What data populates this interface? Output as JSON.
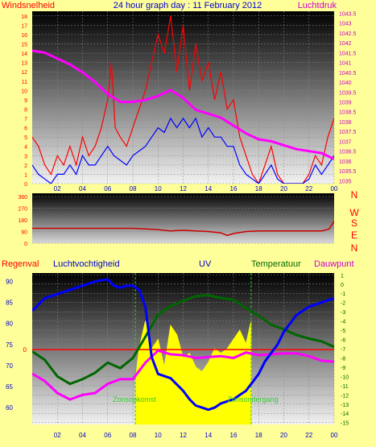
{
  "colors": {
    "background": "#ffff99",
    "wind": "#ff0000",
    "wind_avg": "#0000ff",
    "pressure": "#ff00ff",
    "direction": "#cc0000",
    "humidity": "#0000ff",
    "uv": "#ffff00",
    "temperature": "#006600",
    "dewpoint": "#ff00ff",
    "rain": "#ff0000",
    "text_red": "#ff0000",
    "text_blue": "#0000cc",
    "text_magenta": "#cc00cc",
    "text_green": "#006600",
    "marker_green": "#33cc33"
  },
  "chart_data": [
    {
      "type": "line",
      "title": "24 hour graph day : 11 February 2012",
      "left_label": "Windsnelheid",
      "right_label": "Luchtdruk",
      "x_ticks": [
        "02",
        "04",
        "06",
        "08",
        "10",
        "12",
        "14",
        "16",
        "18",
        "20",
        "22",
        "00"
      ],
      "y_ticks": [
        "0",
        "1",
        "2",
        "3",
        "4",
        "5",
        "6",
        "7",
        "8",
        "9",
        "10",
        "11",
        "12",
        "13",
        "14",
        "15",
        "16",
        "17",
        "18"
      ],
      "y2_ticks": [
        "1035",
        "1035.5",
        "1036",
        "1036.5",
        "1037",
        "1037.5",
        "1038",
        "1038.5",
        "1039",
        "1039.5",
        "1040",
        "1040.5",
        "1041",
        "1041.5",
        "1042",
        "1042.5",
        "1043",
        "1043.5"
      ],
      "xlim": [
        0,
        24
      ],
      "ylim": [
        0,
        18.5
      ],
      "y2lim": [
        1034.85,
        1043.6
      ],
      "series": [
        {
          "key": "wind_gust",
          "x": [
            0,
            0.5,
            1,
            1.5,
            2,
            2.5,
            3,
            3.5,
            4,
            4.5,
            5,
            5.5,
            6,
            6.3,
            6.6,
            7,
            7.5,
            8,
            8.5,
            9,
            9.5,
            10,
            10.5,
            11,
            11.5,
            12,
            12.5,
            13,
            13.5,
            14,
            14.5,
            15,
            15.5,
            16,
            16.5,
            17,
            17.5,
            18,
            18.5,
            19,
            19.5,
            20,
            20.5,
            21,
            21.5,
            22,
            22.5,
            23,
            23.5,
            24
          ],
          "values": [
            5,
            4,
            2,
            1,
            3,
            2,
            4,
            2,
            5,
            3,
            4,
            6,
            9,
            13,
            6,
            5,
            4,
            6,
            8,
            10,
            13,
            16,
            14,
            18,
            12,
            17,
            10,
            15,
            11,
            13,
            9,
            12,
            8,
            9,
            5,
            3,
            1,
            0,
            2,
            4,
            1,
            0,
            0,
            0,
            0,
            1,
            3,
            2,
            5,
            7
          ]
        },
        {
          "key": "wind_avg",
          "x": [
            0,
            0.5,
            1,
            1.5,
            2,
            2.5,
            3,
            3.5,
            4,
            4.5,
            5,
            5.5,
            6,
            6.5,
            7,
            7.5,
            8,
            8.5,
            9,
            9.5,
            10,
            10.5,
            11,
            11.5,
            12,
            12.5,
            13,
            13.5,
            14,
            14.5,
            15,
            15.5,
            16,
            16.5,
            17,
            17.5,
            18,
            18.5,
            19,
            19.5,
            20,
            20.5,
            21,
            21.5,
            22,
            22.5,
            23,
            23.5,
            24
          ],
          "values": [
            2,
            1,
            0.5,
            0,
            1,
            1,
            2,
            1,
            3,
            2,
            2,
            3,
            4,
            3,
            2.5,
            2,
            3,
            3.5,
            4,
            5,
            6,
            5.5,
            7,
            6,
            7,
            6,
            7,
            5,
            6,
            5,
            5,
            4,
            4,
            2,
            1,
            0.5,
            0,
            1,
            2,
            0.5,
            0,
            0,
            0,
            0,
            0.5,
            2,
            1,
            2,
            3
          ]
        },
        {
          "key": "pressure",
          "axis": "y2",
          "x": [
            0,
            1,
            2,
            3,
            4,
            5,
            6,
            7,
            8,
            9,
            10,
            11,
            12,
            13,
            14,
            15,
            16,
            17,
            18,
            19,
            20,
            21,
            22,
            23,
            24
          ],
          "values": [
            1041.6,
            1041.5,
            1041.2,
            1040.9,
            1040.5,
            1040.0,
            1039.4,
            1039.0,
            1039.0,
            1039.1,
            1039.3,
            1039.6,
            1039.2,
            1038.6,
            1038.4,
            1038.2,
            1037.8,
            1037.4,
            1037.1,
            1037.0,
            1036.8,
            1036.6,
            1036.5,
            1036.4,
            1036.1
          ]
        }
      ]
    },
    {
      "type": "line",
      "y_ticks": [
        "0",
        "90",
        "180",
        "270",
        "360"
      ],
      "compass_labels": [
        "N",
        "W",
        "S",
        "E",
        "N"
      ],
      "ylim": [
        0,
        360
      ],
      "series": [
        {
          "key": "wind_direction",
          "x": [
            0,
            1,
            2,
            3,
            4,
            5,
            6,
            7,
            8,
            9,
            10,
            11,
            12,
            13,
            14,
            15,
            15.5,
            16,
            17,
            18,
            19,
            20,
            21,
            22,
            23,
            23.6,
            24
          ],
          "values": [
            115,
            115,
            115,
            115,
            115,
            115,
            115,
            115,
            115,
            110,
            105,
            95,
            100,
            95,
            90,
            80,
            60,
            75,
            90,
            95,
            95,
            95,
            95,
            95,
            95,
            110,
            170
          ]
        }
      ]
    },
    {
      "type": "line",
      "labels": {
        "rain": "Regenval",
        "humidity": "Luchtvochtigheid",
        "uv": "UV",
        "temperature": "Temperatuur",
        "dewpoint": "Dauwpunt"
      },
      "annotations": [
        "Zonsopkomst",
        "Zonsondergang"
      ],
      "sunrise_hour": 8.2,
      "sunset_hour": 17.4,
      "rain_label": "0",
      "x_ticks": [
        "02",
        "04",
        "06",
        "08",
        "10",
        "12",
        "14",
        "16",
        "18",
        "20",
        "22",
        "00"
      ],
      "y_ticks": [
        "60",
        "65",
        "70",
        "75",
        "80",
        "85",
        "90"
      ],
      "y2_ticks": [
        "1",
        "0",
        "-1",
        "-2",
        "-3",
        "-4",
        "-5",
        "-6",
        "-7",
        "-8",
        "-9",
        "-10",
        "-11",
        "-12",
        "-13",
        "-14",
        "-15"
      ],
      "ylim": [
        56,
        92
      ],
      "y2lim": [
        -15.2,
        1.2
      ],
      "series": [
        {
          "key": "humidity",
          "x": [
            0,
            1,
            2,
            3,
            4,
            5,
            6,
            6.5,
            7,
            7.5,
            8,
            8.5,
            9,
            9.5,
            10,
            11,
            12,
            12.5,
            13,
            13.5,
            14,
            14.5,
            15,
            15.5,
            16,
            16.5,
            17,
            17.5,
            18,
            18.5,
            19,
            19.5,
            20,
            21,
            22,
            23,
            24
          ],
          "values": [
            83,
            86,
            87,
            88,
            89,
            90,
            90.5,
            89,
            88.5,
            89,
            89,
            88,
            84,
            72,
            68,
            67,
            64,
            62,
            60.5,
            60,
            59.5,
            60,
            61,
            61.5,
            62,
            63,
            64,
            66,
            68,
            71,
            73,
            75,
            78,
            82,
            84,
            85,
            86
          ]
        },
        {
          "key": "temperature",
          "axis": "y2",
          "x": [
            0,
            1,
            2,
            3,
            4,
            5,
            6,
            7,
            8,
            9,
            10,
            11,
            12,
            13,
            14,
            15,
            16,
            17,
            18,
            19,
            20,
            21,
            22,
            23,
            24
          ],
          "values": [
            -7.3,
            -8.2,
            -10,
            -10.8,
            -10.3,
            -9.6,
            -8.5,
            -9.1,
            -8.0,
            -5.7,
            -3.3,
            -2.4,
            -1.8,
            -1.3,
            -1.2,
            -1.5,
            -1.7,
            -2.6,
            -3.4,
            -4.4,
            -4.9,
            -5.5,
            -5.9,
            -6.2,
            -6.8
          ]
        },
        {
          "key": "dewpoint",
          "axis": "y2",
          "x": [
            0,
            1,
            2,
            3,
            4,
            5,
            6,
            7,
            8,
            9,
            10,
            11,
            12,
            13,
            14,
            15,
            16,
            17,
            18,
            19,
            20,
            21,
            22,
            23,
            24
          ],
          "values": [
            -9.7,
            -10.5,
            -11.8,
            -12.5,
            -12.0,
            -11.8,
            -10.8,
            -10.3,
            -10.3,
            -8.5,
            -7.2,
            -7.6,
            -7.7,
            -8.0,
            -7.9,
            -7.8,
            -8.0,
            -7.4,
            -7.7,
            -7.6,
            -7.5,
            -7.5,
            -7.8,
            -8.3,
            -8.4
          ]
        },
        {
          "key": "uv",
          "axis": "y2",
          "x": [
            8.2,
            8.5,
            9,
            9.5,
            10,
            10.5,
            11,
            11.5,
            12,
            12.5,
            13,
            13.5,
            14,
            14.5,
            15,
            15.5,
            16,
            16.5,
            17,
            17.4
          ],
          "values": [
            -10.5,
            -7,
            -4,
            -7,
            -6,
            -9,
            -4.5,
            -5.5,
            -8,
            -7.5,
            -9,
            -9.5,
            -8.5,
            -7,
            -7.5,
            -7,
            -6,
            -5,
            -6.5,
            -4
          ]
        }
      ]
    }
  ]
}
